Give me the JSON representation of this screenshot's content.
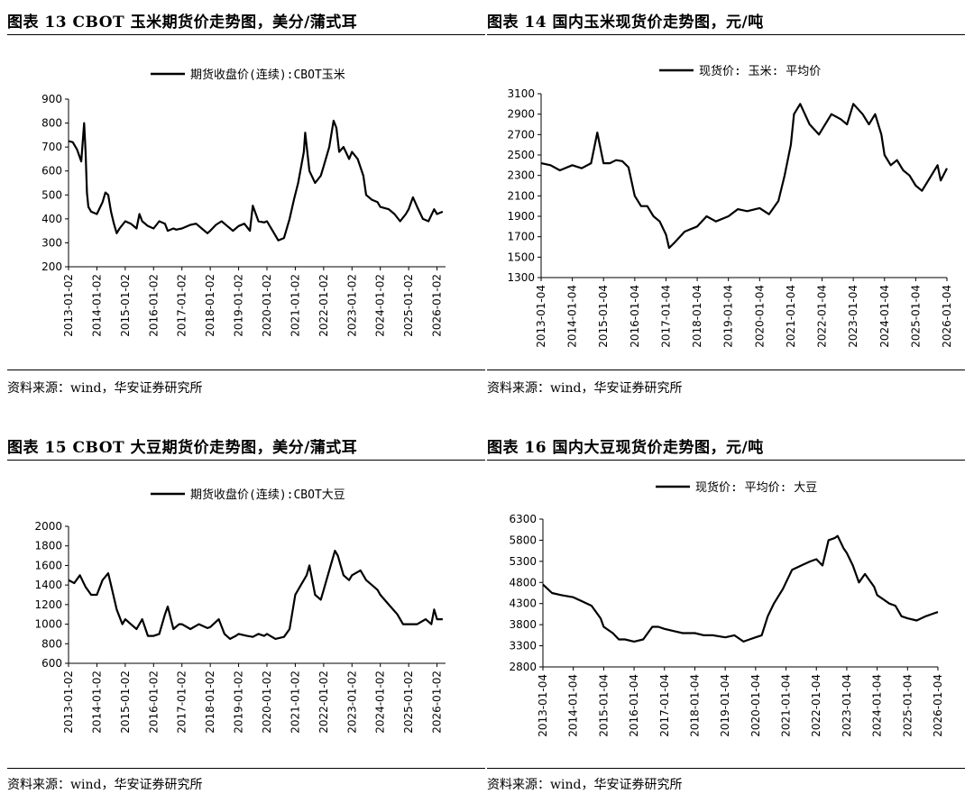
{
  "charts": [
    {
      "heading": "图表 13 CBOT 玉米期货价走势图，美分/蒲式耳",
      "source": "资料来源：wind，华安证券研究所",
      "chart_data": {
        "type": "line",
        "title": "图表 13 CBOT 玉米期货价走势图，美分/蒲式耳",
        "xlabel": "",
        "ylabel": "",
        "ylim": [
          200,
          900
        ],
        "yticks": [
          200,
          300,
          400,
          500,
          600,
          700,
          800,
          900
        ],
        "xlim": [
          2013.0,
          2026.3
        ],
        "xtick_labels": [
          "2013-01-02",
          "2014-01-02",
          "2015-01-02",
          "2016-01-02",
          "2017-01-02",
          "2018-01-02",
          "2019-01-02",
          "2020-01-02",
          "2021-01-02",
          "2022-01-02",
          "2023-01-02",
          "2024-01-02",
          "2025-01-02",
          "2026-01-02"
        ],
        "legend": "top-center",
        "grid": false,
        "series": [
          {
            "name": "期货收盘价(连续):CBOT玉米",
            "x": [
              2013.0,
              2013.15,
              2013.3,
              2013.45,
              2013.55,
              2013.6,
              2013.65,
              2013.7,
              2013.8,
              2014.0,
              2014.2,
              2014.3,
              2014.4,
              2014.5,
              2014.6,
              2014.7,
              2014.8,
              2015.0,
              2015.2,
              2015.4,
              2015.5,
              2015.6,
              2015.8,
              2016.0,
              2016.2,
              2016.4,
              2016.5,
              2016.7,
              2016.8,
              2017.0,
              2017.3,
              2017.5,
              2017.7,
              2017.9,
              2018.0,
              2018.2,
              2018.4,
              2018.6,
              2018.8,
              2019.0,
              2019.2,
              2019.4,
              2019.5,
              2019.7,
              2019.9,
              2020.0,
              2020.2,
              2020.4,
              2020.6,
              2020.8,
              2020.95,
              2021.1,
              2021.3,
              2021.35,
              2021.5,
              2021.7,
              2021.9,
              2022.0,
              2022.2,
              2022.35,
              2022.45,
              2022.55,
              2022.7,
              2022.9,
              2023.0,
              2023.2,
              2023.4,
              2023.5,
              2023.7,
              2023.9,
              2024.0,
              2024.3,
              2024.5,
              2024.7,
              2024.9,
              2025.0,
              2025.15,
              2025.3,
              2025.5,
              2025.7,
              2025.9,
              2026.0,
              2026.2
            ],
            "values": [
              725,
              720,
              690,
              640,
              800,
              680,
              510,
              450,
              430,
              420,
              470,
              510,
              500,
              430,
              380,
              340,
              360,
              390,
              380,
              360,
              420,
              390,
              370,
              360,
              390,
              380,
              350,
              360,
              355,
              360,
              375,
              380,
              360,
              340,
              350,
              375,
              390,
              370,
              350,
              370,
              380,
              350,
              455,
              390,
              385,
              390,
              350,
              310,
              320,
              400,
              480,
              550,
              680,
              760,
              600,
              550,
              580,
              620,
              700,
              810,
              780,
              680,
              700,
              650,
              680,
              650,
              580,
              500,
              480,
              470,
              450,
              440,
              420,
              390,
              420,
              440,
              490,
              450,
              400,
              390,
              440,
              420,
              430
            ]
          }
        ]
      }
    },
    {
      "heading": "图表 14 国内玉米现货价走势图，元/吨",
      "source": "资料来源：wind，华安证券研究所",
      "chart_data": {
        "type": "line",
        "title": "图表 14 国内玉米现货价走势图，元/吨",
        "xlabel": "",
        "ylabel": "",
        "ylim": [
          1300,
          3100
        ],
        "yticks": [
          1300,
          1500,
          1700,
          1900,
          2100,
          2300,
          2500,
          2700,
          2900,
          3100
        ],
        "xlim": [
          2013.0,
          2026.0
        ],
        "xtick_labels": [
          "2013-01-04",
          "2014-01-04",
          "2015-01-04",
          "2016-01-04",
          "2017-01-04",
          "2018-01-04",
          "2019-01-04",
          "2020-01-04",
          "2021-01-04",
          "2022-01-04",
          "2023-01-04",
          "2024-01-04",
          "2025-01-04",
          "2026-01-04"
        ],
        "legend": "top-center",
        "grid": false,
        "series": [
          {
            "name": "现货价: 玉米: 平均价",
            "x": [
              2013.0,
              2013.3,
              2013.6,
              2014.0,
              2014.3,
              2014.6,
              2014.8,
              2015.0,
              2015.2,
              2015.4,
              2015.6,
              2015.8,
              2016.0,
              2016.2,
              2016.4,
              2016.6,
              2016.8,
              2017.0,
              2017.1,
              2017.3,
              2017.6,
              2018.0,
              2018.3,
              2018.6,
              2019.0,
              2019.3,
              2019.6,
              2020.0,
              2020.3,
              2020.6,
              2020.8,
              2021.0,
              2021.1,
              2021.3,
              2021.6,
              2021.9,
              2022.0,
              2022.3,
              2022.6,
              2022.8,
              2023.0,
              2023.3,
              2023.5,
              2023.7,
              2023.9,
              2024.0,
              2024.2,
              2024.4,
              2024.6,
              2024.8,
              2025.0,
              2025.2,
              2025.5,
              2025.7,
              2025.8,
              2026.0
            ],
            "values": [
              2420,
              2400,
              2350,
              2400,
              2370,
              2420,
              2720,
              2420,
              2420,
              2450,
              2440,
              2380,
              2100,
              2000,
              2000,
              1900,
              1850,
              1720,
              1590,
              1650,
              1750,
              1800,
              1900,
              1850,
              1900,
              1970,
              1950,
              1980,
              1920,
              2050,
              2300,
              2600,
              2900,
              3000,
              2800,
              2700,
              2750,
              2900,
              2850,
              2800,
              3000,
              2900,
              2800,
              2900,
              2700,
              2500,
              2400,
              2450,
              2350,
              2300,
              2200,
              2150,
              2300,
              2400,
              2250,
              2370
            ]
          }
        ]
      }
    },
    {
      "heading": "图表 15 CBOT 大豆期货价走势图，美分/蒲式耳",
      "source": "资料来源：wind，华安证券研究所",
      "chart_data": {
        "type": "line",
        "title": "图表 15 CBOT 大豆期货价走势图，美分/蒲式耳",
        "xlabel": "",
        "ylabel": "",
        "ylim": [
          600,
          2000
        ],
        "yticks": [
          600,
          800,
          1000,
          1200,
          1400,
          1600,
          1800,
          2000
        ],
        "xlim": [
          2013.0,
          2026.3
        ],
        "xtick_labels": [
          "2013-01-02",
          "2014-01-02",
          "2015-01-02",
          "2016-01-02",
          "2017-01-02",
          "2018-01-02",
          "2019-01-02",
          "2020-01-02",
          "2021-01-02",
          "2022-01-02",
          "2023-01-02",
          "2024-01-02",
          "2025-01-02",
          "2026-01-02"
        ],
        "legend": "top-center",
        "grid": false,
        "series": [
          {
            "name": "期货收盘价(连续):CBOT大豆",
            "x": [
              2013.0,
              2013.2,
              2013.4,
              2013.6,
              2013.8,
              2014.0,
              2014.2,
              2014.4,
              2014.5,
              2014.7,
              2014.9,
              2015.0,
              2015.2,
              2015.4,
              2015.6,
              2015.8,
              2016.0,
              2016.2,
              2016.4,
              2016.5,
              2016.7,
              2016.9,
              2017.0,
              2017.3,
              2017.6,
              2017.9,
              2018.0,
              2018.3,
              2018.5,
              2018.7,
              2018.9,
              2019.0,
              2019.3,
              2019.5,
              2019.7,
              2019.9,
              2020.0,
              2020.3,
              2020.6,
              2020.8,
              2021.0,
              2021.2,
              2021.4,
              2021.5,
              2021.7,
              2021.9,
              2022.0,
              2022.2,
              2022.4,
              2022.5,
              2022.7,
              2022.9,
              2023.0,
              2023.3,
              2023.5,
              2023.7,
              2023.9,
              2024.0,
              2024.3,
              2024.6,
              2024.8,
              2025.0,
              2025.3,
              2025.6,
              2025.8,
              2025.9,
              2026.0,
              2026.2
            ],
            "values": [
              1450,
              1420,
              1500,
              1380,
              1300,
              1300,
              1450,
              1520,
              1400,
              1150,
              1000,
              1050,
              1000,
              950,
              1050,
              880,
              880,
              900,
              1100,
              1180,
              950,
              1000,
              1000,
              950,
              1000,
              960,
              970,
              1050,
              900,
              850,
              880,
              900,
              880,
              870,
              900,
              880,
              900,
              850,
              870,
              950,
              1300,
              1400,
              1500,
              1600,
              1300,
              1250,
              1350,
              1550,
              1750,
              1700,
              1500,
              1450,
              1500,
              1550,
              1450,
              1400,
              1350,
              1300,
              1200,
              1100,
              1000,
              1000,
              1000,
              1050,
              1000,
              1150,
              1050,
              1050
            ]
          }
        ]
      }
    },
    {
      "heading": "图表 16 国内大豆现货价走势图，元/吨",
      "source": "资料来源：wind，华安证券研究所",
      "chart_data": {
        "type": "line",
        "title": "图表 16 国内大豆现货价走势图，元/吨",
        "xlabel": "",
        "ylabel": "",
        "ylim": [
          2800,
          6300
        ],
        "yticks": [
          2800,
          3300,
          3800,
          4300,
          4800,
          5300,
          5800,
          6300
        ],
        "xlim": [
          2013.0,
          2026.0
        ],
        "xtick_labels": [
          "2013-01-04",
          "2014-01-04",
          "2015-01-04",
          "2016-01-04",
          "2017-01-04",
          "2018-01-04",
          "2019-01-04",
          "2020-01-04",
          "2021-01-04",
          "2022-01-04",
          "2023-01-04",
          "2024-01-04",
          "2025-01-04",
          "2026-01-04"
        ],
        "legend": "top-center",
        "grid": false,
        "series": [
          {
            "name": "现货价: 平均价: 大豆",
            "x": [
              2013.0,
              2013.3,
              2013.6,
              2014.0,
              2014.3,
              2014.6,
              2014.9,
              2015.0,
              2015.3,
              2015.5,
              2015.7,
              2016.0,
              2016.3,
              2016.6,
              2016.8,
              2017.0,
              2017.3,
              2017.6,
              2018.0,
              2018.3,
              2018.6,
              2019.0,
              2019.3,
              2019.6,
              2019.8,
              2020.0,
              2020.2,
              2020.4,
              2020.6,
              2020.9,
              2021.0,
              2021.2,
              2021.5,
              2021.8,
              2022.0,
              2022.2,
              2022.4,
              2022.6,
              2022.7,
              2022.9,
              2023.0,
              2023.2,
              2023.4,
              2023.6,
              2023.9,
              2024.0,
              2024.2,
              2024.4,
              2024.6,
              2024.8,
              2025.0,
              2025.3,
              2025.6,
              2025.8,
              2026.0
            ],
            "values": [
              4750,
              4550,
              4500,
              4450,
              4350,
              4250,
              3950,
              3750,
              3600,
              3450,
              3450,
              3400,
              3450,
              3750,
              3750,
              3700,
              3650,
              3600,
              3600,
              3550,
              3550,
              3500,
              3550,
              3400,
              3450,
              3500,
              3550,
              4000,
              4300,
              4650,
              4800,
              5100,
              5200,
              5300,
              5350,
              5200,
              5800,
              5850,
              5900,
              5600,
              5500,
              5200,
              4800,
              5000,
              4700,
              4500,
              4400,
              4300,
              4250,
              4000,
              3950,
              3900,
              4000,
              4050,
              4100
            ]
          }
        ]
      }
    }
  ]
}
